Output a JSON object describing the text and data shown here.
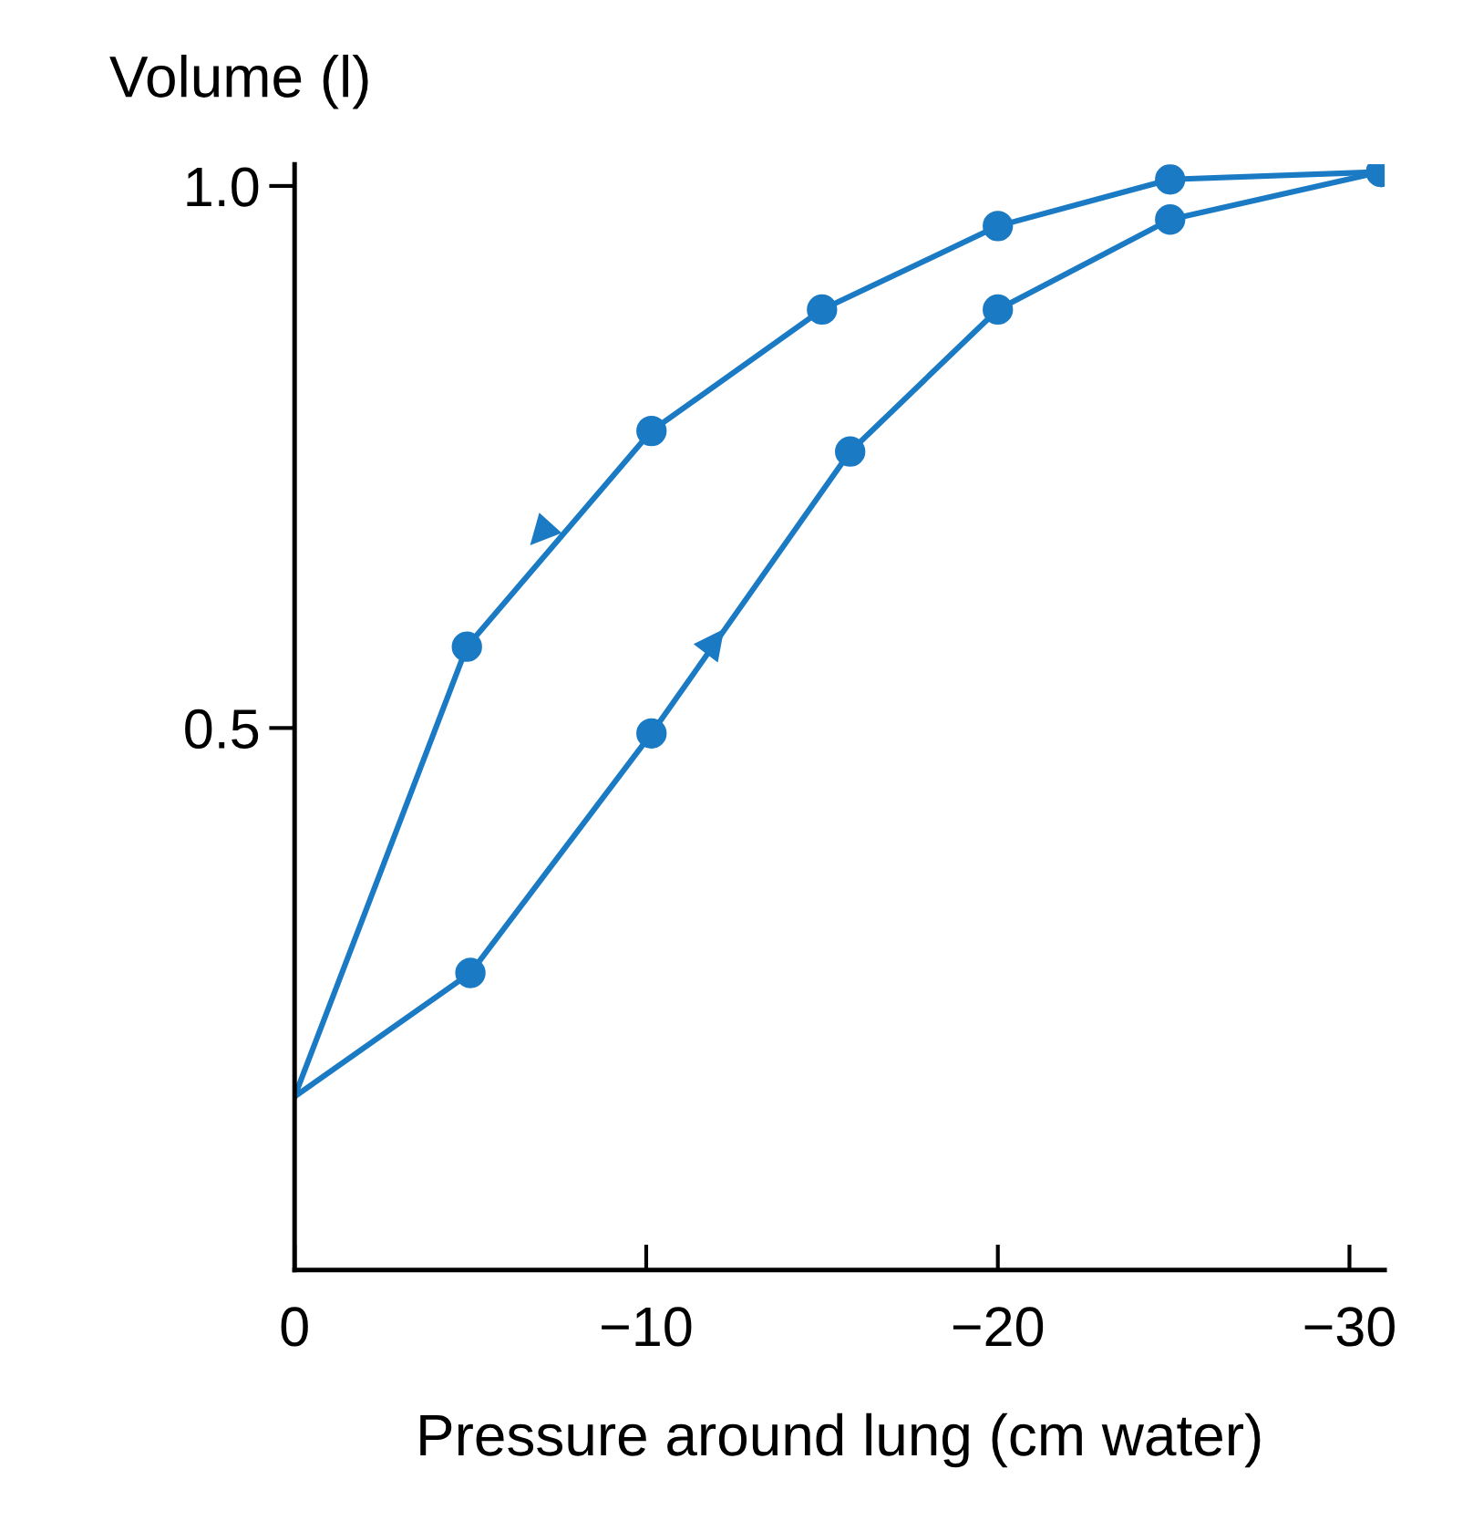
{
  "chart_data": {
    "type": "line",
    "xlabel": "Pressure around lung (cm water)",
    "ylabel": "Volume (l)",
    "xlim": [
      0,
      -31
    ],
    "ylim": [
      0,
      1.02
    ],
    "xticks": [
      0,
      {
        "value": -10,
        "label": "−10"
      },
      {
        "value": -20,
        "label": "−20"
      },
      {
        "value": -30,
        "label": "−30"
      }
    ],
    "yticks": [
      0.5,
      {
        "value": 1.0,
        "label": "1.0"
      }
    ],
    "series": [
      {
        "color": "#1a7ac4",
        "x": [
          0,
          -4.9,
          -10.15,
          -15,
          -20,
          -24.9,
          -30.9
        ],
        "values": [
          0.16,
          0.575,
          0.774,
          0.886,
          0.963,
          1.006,
          1.013
        ]
      },
      {
        "color": "#1a7ac4",
        "x": [
          0,
          -5,
          -10.15,
          -15.8,
          -20,
          -24.9,
          -30.9
        ],
        "values": [
          0.16,
          0.274,
          0.495,
          0.755,
          0.886,
          0.969,
          1.013
        ]
      }
    ],
    "marker": "circle",
    "line_style": "solid",
    "grid": false,
    "legend": false
  }
}
